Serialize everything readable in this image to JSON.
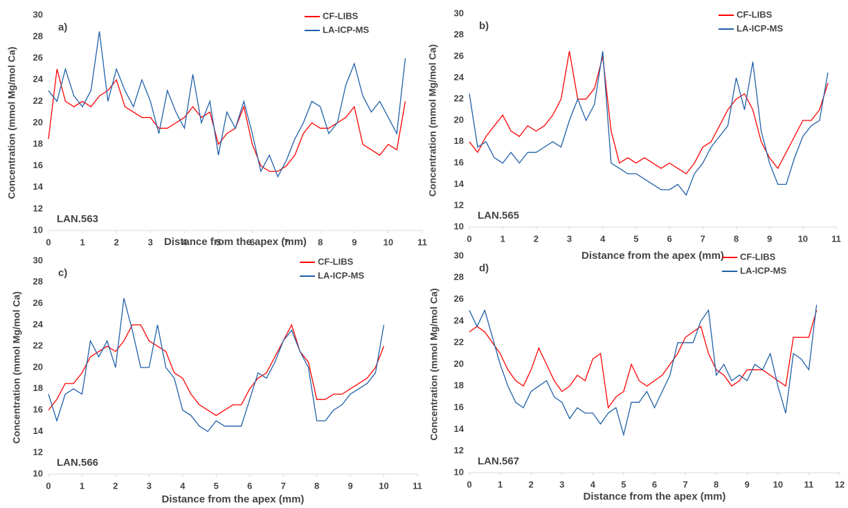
{
  "chart_data": [
    {
      "type": "line",
      "title": "a)",
      "annotation": "LAN.563",
      "x_label": "Distance from the apex (mm)",
      "y_label": "Concentration (mmol Mg/mol Ca)",
      "xlim": [
        0,
        11
      ],
      "ylim": [
        10,
        30
      ],
      "xticks": [
        0,
        1,
        2,
        3,
        4,
        5,
        6,
        7,
        8,
        9,
        10,
        11
      ],
      "yticks": [
        10,
        12,
        14,
        16,
        18,
        20,
        22,
        24,
        26,
        28,
        30
      ],
      "legend": "upper right",
      "x": [
        0,
        0.25,
        0.5,
        0.75,
        1,
        1.25,
        1.5,
        1.75,
        2,
        2.25,
        2.5,
        2.75,
        3,
        3.25,
        3.5,
        3.75,
        4,
        4.25,
        4.5,
        4.75,
        5,
        5.25,
        5.5,
        5.75,
        6,
        6.25,
        6.5,
        6.75,
        7,
        7.25,
        7.5,
        7.75,
        8,
        8.25,
        8.5,
        8.75,
        9,
        9.25,
        9.5,
        9.75,
        10,
        10.25,
        10.5
      ],
      "series": [
        {
          "name": "CF-LIBS",
          "color": "#ff0000",
          "values": [
            18.5,
            25,
            22,
            21.5,
            22,
            21.5,
            22.5,
            23,
            24,
            21.5,
            21,
            20.5,
            20.5,
            19.5,
            19.5,
            20,
            20.5,
            21.5,
            20.5,
            21,
            18,
            19,
            19.5,
            21.5,
            18,
            16,
            15.5,
            15.5,
            16,
            17,
            19,
            20,
            19.5,
            19.5,
            20,
            20.5,
            21.5,
            18,
            17.5,
            17,
            18,
            17.5,
            22
          ]
        },
        {
          "name": "LA-ICP-MS",
          "color": "#1f5fa8",
          "values": [
            23,
            22,
            25,
            22.5,
            21.5,
            23,
            28.5,
            22,
            25,
            23,
            21.5,
            24,
            22,
            19,
            23,
            21,
            19.5,
            24.5,
            20,
            22,
            17,
            21,
            19.5,
            22,
            19,
            15.5,
            17,
            15,
            16.5,
            18.5,
            20,
            22,
            21.5,
            19,
            20,
            23.5,
            25.5,
            22.5,
            21,
            22,
            20.5,
            19,
            26
          ]
        }
      ]
    },
    {
      "type": "line",
      "title": "b)",
      "annotation": "LAN.565",
      "x_label": "Distance from the apex (mm)",
      "y_label": "Concentration (mmol Mg/mol Ca)",
      "xlim": [
        0,
        11
      ],
      "ylim": [
        10,
        30
      ],
      "xticks": [
        0,
        1,
        2,
        3,
        4,
        5,
        6,
        7,
        8,
        9,
        10,
        11
      ],
      "yticks": [
        10,
        12,
        14,
        16,
        18,
        20,
        22,
        24,
        26,
        28,
        30
      ],
      "legend": "upper right",
      "x": [
        0,
        0.25,
        0.5,
        0.75,
        1,
        1.25,
        1.5,
        1.75,
        2,
        2.25,
        2.5,
        2.75,
        3,
        3.25,
        3.5,
        3.75,
        4,
        4.25,
        4.5,
        4.75,
        5,
        5.25,
        5.5,
        5.75,
        6,
        6.25,
        6.5,
        6.75,
        7,
        7.25,
        7.5,
        7.75,
        8,
        8.25,
        8.5,
        8.75,
        9,
        9.25,
        9.5,
        9.75,
        10,
        10.25,
        10.5,
        10.75
      ],
      "series": [
        {
          "name": "CF-LIBS",
          "color": "#ff0000",
          "values": [
            18,
            17,
            18.5,
            19.5,
            20.5,
            19,
            18.5,
            19.5,
            19,
            19.5,
            20.5,
            22,
            26.5,
            22,
            22,
            23,
            26,
            19,
            16,
            16.5,
            16,
            16.5,
            16,
            15.5,
            16,
            15.5,
            15,
            16,
            17.5,
            18,
            19.5,
            21,
            22,
            22.5,
            21,
            18,
            16.5,
            15.5,
            17,
            18.5,
            20,
            20,
            21,
            23.5
          ]
        },
        {
          "name": "LA-ICP-MS",
          "color": "#1f5fa8",
          "values": [
            22.5,
            17.5,
            18,
            16.5,
            16,
            17,
            16,
            17,
            17,
            17.5,
            18,
            17.5,
            20,
            22,
            20,
            21.5,
            26.5,
            16,
            15.5,
            15,
            15,
            14.5,
            14,
            13.5,
            13.5,
            14,
            13,
            15,
            16,
            17.5,
            18.5,
            19.5,
            24,
            21,
            25.5,
            19,
            16,
            14,
            14,
            16.5,
            18.5,
            19.5,
            20,
            24.5
          ]
        }
      ]
    },
    {
      "type": "line",
      "title": "c)",
      "annotation": "LAN.566",
      "x_label": "Distance from the apex (mm)",
      "y_label": "Concentration (mmol Mg/mol Ca)",
      "xlim": [
        0,
        11
      ],
      "ylim": [
        10,
        30
      ],
      "xticks": [
        0,
        1,
        2,
        3,
        4,
        5,
        6,
        7,
        8,
        9,
        10,
        11
      ],
      "yticks": [
        10,
        12,
        14,
        16,
        18,
        20,
        22,
        24,
        26,
        28,
        30
      ],
      "legend": "upper right",
      "x": [
        0,
        0.25,
        0.5,
        0.75,
        1,
        1.25,
        1.5,
        1.75,
        2,
        2.25,
        2.5,
        2.75,
        3,
        3.25,
        3.5,
        3.75,
        4,
        4.25,
        4.5,
        4.75,
        5,
        5.25,
        5.5,
        5.75,
        6,
        6.25,
        6.5,
        6.75,
        7,
        7.25,
        7.5,
        7.75,
        8,
        8.25,
        8.5,
        8.75,
        9,
        9.25,
        9.5,
        9.75,
        10
      ],
      "series": [
        {
          "name": "CF-LIBS",
          "color": "#ff0000",
          "values": [
            16,
            17,
            18.5,
            18.5,
            19.5,
            21,
            21.5,
            22,
            21.5,
            22.5,
            24,
            24,
            22.5,
            22,
            21.5,
            19.5,
            19,
            17.5,
            16.5,
            16,
            15.5,
            16,
            16.5,
            16.5,
            18,
            19,
            19.5,
            21,
            22.5,
            24,
            21.5,
            20.5,
            17,
            17,
            17.5,
            17.5,
            18,
            18.5,
            19,
            20,
            22
          ]
        },
        {
          "name": "LA-ICP-MS",
          "color": "#1f5fa8",
          "values": [
            17.5,
            15,
            17.5,
            18,
            17.5,
            22.5,
            21,
            22.5,
            20,
            26.5,
            23.5,
            20,
            20,
            24,
            20,
            19,
            16,
            15.5,
            14.5,
            14,
            15,
            14.5,
            14.5,
            14.5,
            17,
            19.5,
            19,
            20.5,
            22.5,
            23.5,
            21.5,
            20,
            15,
            15,
            16,
            16.5,
            17.5,
            18,
            18.5,
            19.5,
            24
          ]
        }
      ]
    },
    {
      "type": "line",
      "title": "d)",
      "annotation": "LAN.567",
      "x_label": "Distance from the apex (mm)",
      "y_label": "Concentration (mmol Mg/mol Ca)",
      "xlim": [
        0,
        12
      ],
      "ylim": [
        10,
        30
      ],
      "xticks": [
        0,
        1,
        2,
        3,
        4,
        5,
        6,
        7,
        8,
        9,
        10,
        11,
        12
      ],
      "yticks": [
        10,
        12,
        14,
        16,
        18,
        20,
        22,
        24,
        26,
        28,
        30
      ],
      "legend": "upper right",
      "x": [
        0,
        0.25,
        0.5,
        0.75,
        1,
        1.25,
        1.5,
        1.75,
        2,
        2.25,
        2.5,
        2.75,
        3,
        3.25,
        3.5,
        3.75,
        4,
        4.25,
        4.5,
        4.75,
        5,
        5.25,
        5.5,
        5.75,
        6,
        6.25,
        6.5,
        6.75,
        7,
        7.25,
        7.5,
        7.75,
        8,
        8.25,
        8.5,
        8.75,
        9,
        9.25,
        9.5,
        9.75,
        10,
        10.25,
        10.5,
        10.75,
        11,
        11.25
      ],
      "series": [
        {
          "name": "CF-LIBS",
          "color": "#ff0000",
          "values": [
            23,
            23.5,
            23,
            22,
            21,
            19.5,
            18.5,
            18,
            19.5,
            21.5,
            20,
            18.5,
            17.5,
            18,
            19,
            18.5,
            20.5,
            21,
            16,
            17,
            17.5,
            20,
            18.5,
            18,
            18.5,
            19,
            20,
            21,
            22.5,
            23,
            23.5,
            21,
            19.5,
            19,
            18,
            18.5,
            19.5,
            19.5,
            19.5,
            19,
            18.5,
            18,
            22.5,
            22.5,
            22.5,
            25
          ]
        },
        {
          "name": "LA-ICP-MS",
          "color": "#1f5fa8",
          "values": [
            25,
            23.5,
            25,
            22.5,
            20,
            18,
            16.5,
            16,
            17.5,
            18,
            18.5,
            17,
            16.5,
            15,
            16,
            15.5,
            15.5,
            14.5,
            15.5,
            16,
            13.5,
            16.5,
            16.5,
            17.5,
            16,
            17.5,
            19,
            22,
            22,
            22,
            24,
            25,
            19,
            20,
            18.5,
            19,
            18.5,
            20,
            19.5,
            21,
            18,
            15.5,
            21,
            20.5,
            19.5,
            25.5
          ]
        }
      ]
    }
  ]
}
